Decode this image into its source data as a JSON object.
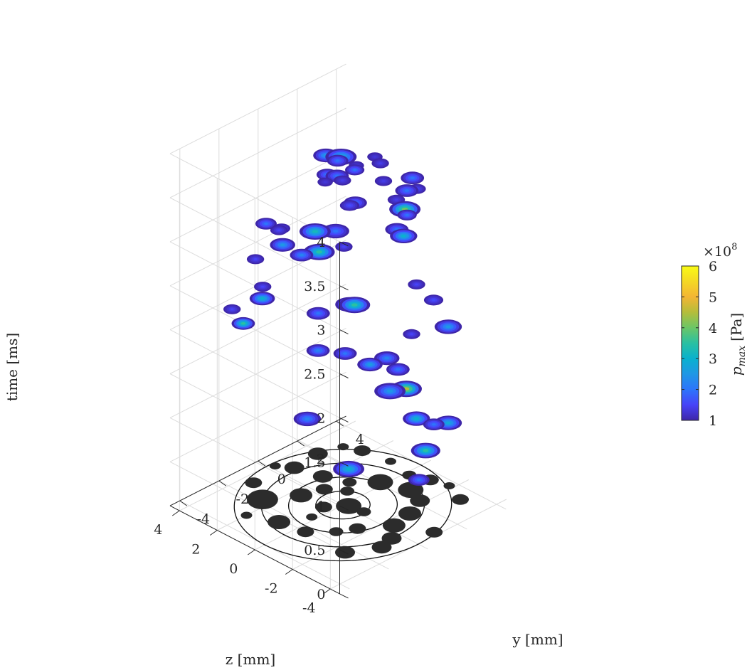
{
  "chart_data": {
    "type": "scatter3d",
    "title": "",
    "xlabel": "z [mm]",
    "ylabel": "y [mm]",
    "zlabel": "time [ms]",
    "xlim": [
      -4.5,
      4.5
    ],
    "ylim": [
      -4.5,
      4.5
    ],
    "zlim": [
      0,
      4
    ],
    "x_ticks": [
      4,
      2,
      0,
      -2,
      -4
    ],
    "x_tick_labels": [
      "4",
      "2",
      "0",
      "-2",
      "-4"
    ],
    "y_ticks": [
      -4,
      -2,
      0,
      2,
      4
    ],
    "y_tick_labels": [
      "-4",
      "-2",
      "0",
      "2",
      "4"
    ],
    "z_ticks": [
      0,
      0.5,
      1,
      1.5,
      2,
      2.5,
      3,
      3.5,
      4
    ],
    "z_tick_labels": [
      "0",
      "0.5",
      "1",
      "1.5",
      "2",
      "2.5",
      "3",
      "3.5",
      "4"
    ],
    "grid": true,
    "rings_radius_mm": [
      1.0,
      2.0,
      3.0,
      4.0
    ],
    "colorbar": {
      "label_var": "p",
      "label_sub": "max",
      "label_unit": "[Pa]",
      "exponent_label": "×10",
      "exponent_power": "8",
      "min": 1,
      "max": 6,
      "ticks": [
        "1",
        "2",
        "3",
        "4",
        "5",
        "6"
      ],
      "colormap": [
        "#3e26a8",
        "#4743f8",
        "#2d75fb",
        "#1f97e5",
        "#0ab1ce",
        "#2ac0a2",
        "#6bc667",
        "#b4bd3b",
        "#f3b534",
        "#f4d824",
        "#f9fb14"
      ]
    },
    "footprint_color": "#2c2c2c",
    "events": [
      {
        "z": -0.2,
        "y": 0.1,
        "t": 0.42,
        "size": 1.0,
        "peak": 3.0
      },
      {
        "z": 2.2,
        "y": 0.3,
        "t": 0.7,
        "size": 0.8,
        "peak": 2.2
      },
      {
        "z": 0.1,
        "y": 2.5,
        "t": 1.0,
        "size": 1.0,
        "peak": 2.5
      },
      {
        "z": -1.2,
        "y": 2.6,
        "t": 0.82,
        "size": 0.8,
        "peak": 3.0
      },
      {
        "z": -2.0,
        "y": 2.3,
        "t": 0.58,
        "size": 0.9,
        "peak": 3.5
      },
      {
        "z": -1.5,
        "y": 3.2,
        "t": 0.72,
        "size": 0.5,
        "peak": 2.0
      },
      {
        "z": 1.2,
        "y": 3.4,
        "t": 1.15,
        "size": 0.7,
        "peak": 2.2
      },
      {
        "z": 0.2,
        "y": 3.7,
        "t": 1.5,
        "size": 0.3,
        "peak": 1.5
      },
      {
        "z": -3.2,
        "y": 0.8,
        "t": 0.55,
        "size": 0.5,
        "peak": 2.0
      },
      {
        "z": 0.9,
        "y": -0.4,
        "t": 1.7,
        "size": 0.6,
        "peak": 2.2
      },
      {
        "z": 0.4,
        "y": 0.5,
        "t": 1.62,
        "size": 0.6,
        "peak": 2.0
      },
      {
        "z": -0.5,
        "y": 0.9,
        "t": 1.55,
        "size": 0.7,
        "peak": 2.6
      },
      {
        "z": -2.4,
        "y": 0.5,
        "t": 1.75,
        "size": 0.6,
        "peak": 2.0
      },
      {
        "z": -1.8,
        "y": 1.5,
        "t": 1.35,
        "size": 1.0,
        "peak": 4.5
      },
      {
        "z": -3.3,
        "y": 2.2,
        "t": 1.05,
        "size": 0.8,
        "peak": 2.8
      },
      {
        "z": 1.0,
        "y": -0.3,
        "t": 2.1,
        "size": 0.6,
        "peak": 2.0
      },
      {
        "z": 0.2,
        "y": 0.5,
        "t": 2.2,
        "size": 0.8,
        "peak": 2.8
      },
      {
        "z": -0.2,
        "y": 0.4,
        "t": 2.25,
        "size": 1.0,
        "peak": 3.5
      },
      {
        "z": -1.0,
        "y": 2.8,
        "t": 2.3,
        "size": 0.3,
        "peak": 1.5
      },
      {
        "z": -1.8,
        "y": 2.9,
        "t": 2.2,
        "size": 0.4,
        "peak": 1.6
      },
      {
        "z": -3.2,
        "y": 2.3,
        "t": 2.12,
        "size": 0.8,
        "peak": 2.5
      },
      {
        "z": 2.1,
        "y": -2.1,
        "t": 2.35,
        "size": 0.7,
        "peak": 3.0
      },
      {
        "z": 2.9,
        "y": -2.3,
        "t": 2.0,
        "size": 0.6,
        "peak": 3.5
      },
      {
        "z": 2.7,
        "y": -1.5,
        "t": 2.35,
        "size": 0.3,
        "peak": 1.5
      },
      {
        "z": 3.7,
        "y": -2.1,
        "t": 2.05,
        "size": 0.3,
        "peak": 1.5
      },
      {
        "z": 2.4,
        "y": 0.2,
        "t": 2.55,
        "size": 0.6,
        "peak": 2.2
      },
      {
        "z": 3.2,
        "y": 0.0,
        "t": 2.6,
        "size": 0.7,
        "peak": 2.5
      },
      {
        "z": 3.6,
        "y": 0.2,
        "t": 2.7,
        "size": 0.3,
        "peak": 1.5
      },
      {
        "z": 1.4,
        "y": 1.4,
        "t": 2.62,
        "size": 0.3,
        "peak": 1.5
      },
      {
        "z": 2.8,
        "y": 2.6,
        "t": 3.35,
        "size": 1.0,
        "peak": 3.0
      },
      {
        "z": 2.7,
        "y": 1.8,
        "t": 3.25,
        "size": 0.5,
        "peak": 2.0
      },
      {
        "z": 3.5,
        "y": 2.5,
        "t": 3.3,
        "size": 0.7,
        "peak": 2.5
      },
      {
        "z": 3.6,
        "y": 3.2,
        "t": 3.15,
        "size": 0.5,
        "peak": 2.0
      },
      {
        "z": 2.9,
        "y": 3.4,
        "t": 3.1,
        "size": 0.4,
        "peak": 2.0
      },
      {
        "z": 0.7,
        "y": 0.3,
        "t": 3.0,
        "size": 0.8,
        "peak": 2.0
      },
      {
        "z": -0.9,
        "y": 2.3,
        "t": 3.2,
        "size": 1.0,
        "peak": 4.0
      },
      {
        "z": 1.2,
        "y": 1.5,
        "t": 3.1,
        "size": 0.4,
        "peak": 1.6
      },
      {
        "z": 2.0,
        "y": 1.9,
        "t": 3.25,
        "size": 0.3,
        "peak": 1.4
      },
      {
        "z": 2.4,
        "y": 3.0,
        "t": 3.25,
        "size": 0.2,
        "peak": 1.3
      },
      {
        "z": 2.6,
        "y": 1.6,
        "t": 3.2,
        "size": 0.2,
        "peak": 1.3
      },
      {
        "z": -0.4,
        "y": -1.6,
        "t": 3.1,
        "size": 1.0,
        "peak": 3.5
      },
      {
        "z": 1.8,
        "y": -1.4,
        "t": 3.1,
        "size": 0.3,
        "peak": 1.5
      },
      {
        "z": 0.9,
        "y": -3.6,
        "t": 3.1,
        "size": 0.3,
        "peak": 1.5
      },
      {
        "z": 2.0,
        "y": -2.0,
        "t": 3.2,
        "size": 0.5,
        "peak": 2.0
      },
      {
        "z": -0.6,
        "y": -2.0,
        "t": 3.4,
        "size": 1.0,
        "peak": 3.2
      },
      {
        "z": -2.7,
        "y": 0.5,
        "t": 3.3,
        "size": 0.8,
        "peak": 3.0
      },
      {
        "z": -1.3,
        "y": 2.3,
        "t": 3.6,
        "size": 0.6,
        "peak": 2.0
      },
      {
        "z": -3.3,
        "y": 0.1,
        "t": 3.65,
        "size": 0.4,
        "peak": 2.0
      },
      {
        "z": -4.0,
        "y": -1.1,
        "t": 3.7,
        "size": 0.6,
        "peak": 2.0
      },
      {
        "z": -1.9,
        "y": -1.2,
        "t": 3.78,
        "size": 0.6,
        "peak": 2.0
      },
      {
        "z": 0.1,
        "y": -0.2,
        "t": 3.75,
        "size": 0.6,
        "peak": 2.0
      },
      {
        "z": -0.9,
        "y": 2.4,
        "t": 3.4,
        "size": 0.6,
        "peak": 2.0
      },
      {
        "z": -2.9,
        "y": 1.0,
        "t": 3.8,
        "size": 0.3,
        "peak": 1.5
      },
      {
        "z": -2.0,
        "y": 0.8,
        "t": 3.6,
        "size": 0.3,
        "peak": 1.4
      },
      {
        "z": -0.7,
        "y": 1.4,
        "t": 3.6,
        "size": 0.3,
        "peak": 1.4
      },
      {
        "z": 0.3,
        "y": 2.2,
        "t": 3.6,
        "size": 0.3,
        "peak": 1.4
      },
      {
        "z": 1.0,
        "y": 2.6,
        "t": 3.55,
        "size": 0.2,
        "peak": 1.3
      }
    ],
    "footprints": [
      {
        "z": -0.2,
        "y": 0.1,
        "r": 0.45
      },
      {
        "z": 0.4,
        "y": -0.6,
        "r": 0.3
      },
      {
        "z": -0.9,
        "y": 0.2,
        "r": 0.25
      },
      {
        "z": 0.6,
        "y": 0.8,
        "r": 0.25
      },
      {
        "z": 1.6,
        "y": -0.6,
        "r": 0.4
      },
      {
        "z": 1.3,
        "y": 0.3,
        "r": 0.3
      },
      {
        "z": 2.0,
        "y": 0.9,
        "r": 0.35
      },
      {
        "z": 0.2,
        "y": 2.1,
        "r": 0.45
      },
      {
        "z": -1.0,
        "y": 2.5,
        "r": 0.45
      },
      {
        "z": -1.8,
        "y": 2.2,
        "r": 0.35
      },
      {
        "z": -2.2,
        "y": 1.3,
        "r": 0.4
      },
      {
        "z": -2.4,
        "y": 0.3,
        "r": 0.4
      },
      {
        "z": -1.6,
        "y": -0.8,
        "r": 0.3
      },
      {
        "z": -3.0,
        "y": -0.4,
        "r": 0.35
      },
      {
        "z": 2.4,
        "y": -1.8,
        "r": 0.55
      },
      {
        "z": -0.4,
        "y": -2.3,
        "r": 0.3
      },
      {
        "z": 0.8,
        "y": -2.5,
        "r": 0.4
      },
      {
        "z": -2.5,
        "y": -2.3,
        "r": 0.35
      },
      {
        "z": -3.2,
        "y": -1.1,
        "r": 0.35
      },
      {
        "z": 3.2,
        "y": 0.6,
        "r": 0.35
      },
      {
        "z": 3.3,
        "y": 1.9,
        "r": 0.35
      },
      {
        "z": 2.3,
        "y": 3.2,
        "r": 0.3
      },
      {
        "z": 1.6,
        "y": 2.0,
        "r": 0.3
      },
      {
        "z": -2.8,
        "y": 3.3,
        "r": 0.3
      },
      {
        "z": -3.8,
        "y": 1.0,
        "r": 0.3
      },
      {
        "z": -1.0,
        "y": 3.5,
        "r": 0.3
      },
      {
        "z": 3.5,
        "y": -1.2,
        "r": 0.3
      },
      {
        "z": 1.0,
        "y": 1.3,
        "r": 0.25
      },
      {
        "z": -1.2,
        "y": -1.5,
        "r": 0.25
      },
      {
        "z": 0.2,
        "y": -1.4,
        "r": 0.2
      },
      {
        "z": 2.0,
        "y": -3.0,
        "r": 0.2
      },
      {
        "z": -0.2,
        "y": 3.2,
        "r": 0.25
      },
      {
        "z": 1.0,
        "y": 3.4,
        "r": 0.2
      },
      {
        "z": -1.8,
        "y": 3.7,
        "r": 0.2
      },
      {
        "z": 3.0,
        "y": 2.9,
        "r": 0.2
      },
      {
        "z": 3.8,
        "y": 0.2,
        "r": 0.2
      }
    ]
  }
}
